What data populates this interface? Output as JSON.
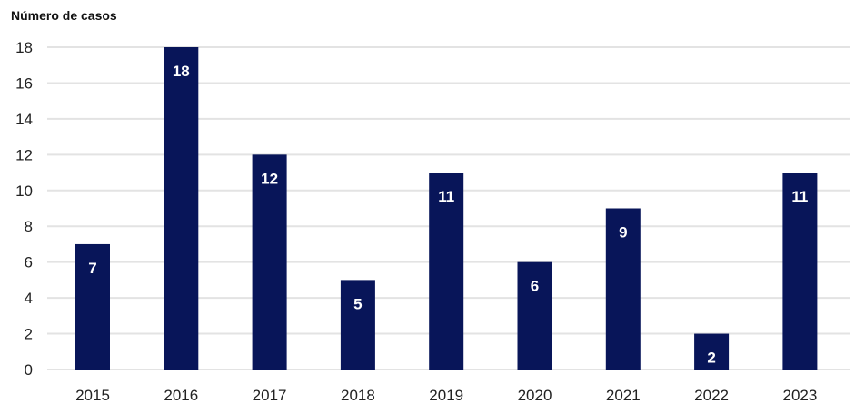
{
  "chart_data": {
    "type": "bar",
    "title": "",
    "ylabel": "Número de casos",
    "xlabel": "",
    "categories": [
      "2015",
      "2016",
      "2017",
      "2018",
      "2019",
      "2020",
      "2021",
      "2022",
      "2023"
    ],
    "values": [
      7,
      18,
      12,
      5,
      11,
      6,
      9,
      2,
      11
    ],
    "ylim": [
      0,
      18
    ],
    "yticks": [
      0,
      2,
      4,
      6,
      8,
      10,
      12,
      14,
      16,
      18
    ],
    "grid": true,
    "data_labels": true,
    "colors": {
      "bar": "#081559",
      "label": "#ffffff",
      "grid": "#e3e3e3"
    }
  }
}
